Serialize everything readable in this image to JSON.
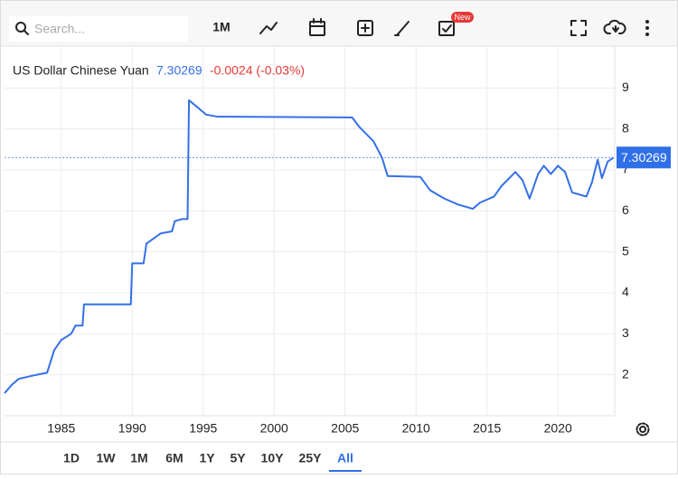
{
  "toolbar": {
    "search_placeholder": "Search...",
    "interval": "1M",
    "badge": "New"
  },
  "ranges": [
    "1D",
    "1W",
    "1M",
    "6M",
    "1Y",
    "5Y",
    "10Y",
    "25Y",
    "All"
  ],
  "range_selected": "All",
  "chart_data": {
    "type": "line",
    "title": "US Dollar Chinese Yuan",
    "last_price": 7.30269,
    "change": "-0.0024 (-0.03%)",
    "x": [
      1981.0,
      1981.5,
      1982,
      1983,
      1984,
      1984.5,
      1985,
      1985.7,
      1986,
      1986.5,
      1986.6,
      1989.9,
      1990,
      1990.8,
      1991,
      1992,
      1992.8,
      1993,
      1993.5,
      1993.9,
      1994.0,
      1994.7,
      1995.2,
      1996,
      2005.5,
      2006,
      2007,
      2007.6,
      2008,
      2010.3,
      2011,
      2012,
      2013,
      2014,
      2014.5,
      2015.5,
      2016,
      2017,
      2017.5,
      2018,
      2018.6,
      2019,
      2019.5,
      2020,
      2020.5,
      2021,
      2022,
      2022.4,
      2022.8,
      2023.1,
      2023.5,
      2023.9
    ],
    "series": [
      {
        "name": "US Dollar Chinese Yuan",
        "color": "#3470e8",
        "values": [
          1.55,
          1.75,
          1.9,
          1.98,
          2.05,
          2.6,
          2.85,
          3.0,
          3.2,
          3.2,
          3.72,
          3.72,
          4.72,
          4.72,
          5.2,
          5.45,
          5.5,
          5.75,
          5.8,
          5.8,
          8.7,
          8.5,
          8.35,
          8.3,
          8.28,
          8.05,
          7.7,
          7.3,
          6.85,
          6.83,
          6.5,
          6.3,
          6.15,
          6.05,
          6.2,
          6.35,
          6.6,
          6.95,
          6.75,
          6.3,
          6.9,
          7.1,
          6.9,
          7.1,
          6.95,
          6.45,
          6.35,
          6.7,
          7.25,
          6.8,
          7.2,
          7.3
        ]
      }
    ],
    "xlim": [
      1981,
      2024
    ],
    "xticks": [
      1985,
      1990,
      1995,
      2000,
      2005,
      2010,
      2015,
      2020
    ],
    "ylim": [
      1,
      10
    ],
    "yticks": [
      2,
      3,
      4,
      5,
      6,
      7,
      8,
      9
    ],
    "grid": true
  }
}
